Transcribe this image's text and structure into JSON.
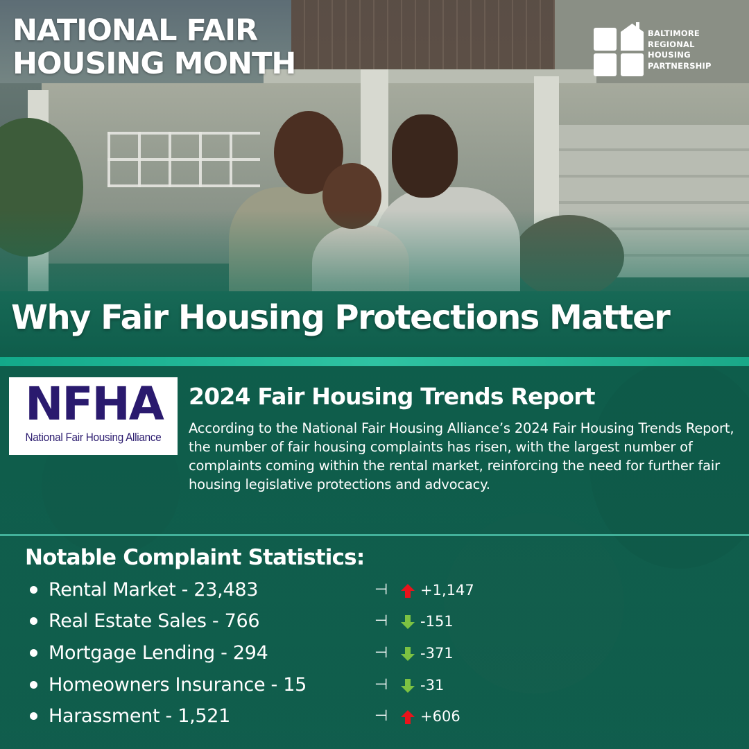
{
  "header": {
    "title_line1": "NATIONAL FAIR",
    "title_line2": "HOUSING MONTH"
  },
  "logo": {
    "icon": "house-grid-icon",
    "line1": "BALTIMORE",
    "line2": "REGIONAL",
    "line3": "HOUSING",
    "line4": "PARTNERSHIP"
  },
  "headline": "Why Fair Housing Protections Matter",
  "nfha": {
    "letters": "NFHA",
    "subtitle": "National Fair Housing Alliance"
  },
  "report": {
    "title": "2024 Fair Housing Trends Report",
    "body": "According to the National Fair Housing Alliance’s 2024 Fair Housing Trends Report, the number of fair housing complaints has risen, with the largest number of complaints coming within the rental market, reinforcing the need for further fair housing legislative protections and advocacy."
  },
  "stats": {
    "title": "Notable Complaint Statistics:",
    "separator": "⊣",
    "items": [
      {
        "label": "Rental Market - 23,483",
        "change": "+1,147",
        "direction": "up",
        "arrow_icon": "arrow-up-icon",
        "color": "#e8131b"
      },
      {
        "label": "Real Estate Sales - 766",
        "change": "-151",
        "direction": "down",
        "arrow_icon": "arrow-down-icon",
        "color": "#7cc242"
      },
      {
        "label": "Mortgage Lending - 294",
        "change": "-371",
        "direction": "down",
        "arrow_icon": "arrow-down-icon",
        "color": "#7cc242"
      },
      {
        "label": "Homeowners Insurance - 15",
        "change": "-31",
        "direction": "down",
        "arrow_icon": "arrow-down-icon",
        "color": "#7cc242"
      },
      {
        "label": "Harassment - 1,521",
        "change": "+606",
        "direction": "up",
        "arrow_icon": "arrow-up-icon",
        "color": "#e8131b"
      }
    ]
  },
  "colors": {
    "brand_green": "#0f5e4c",
    "accent_teal": "#2fc3a2",
    "nfha_purple": "#2a1a6e"
  }
}
